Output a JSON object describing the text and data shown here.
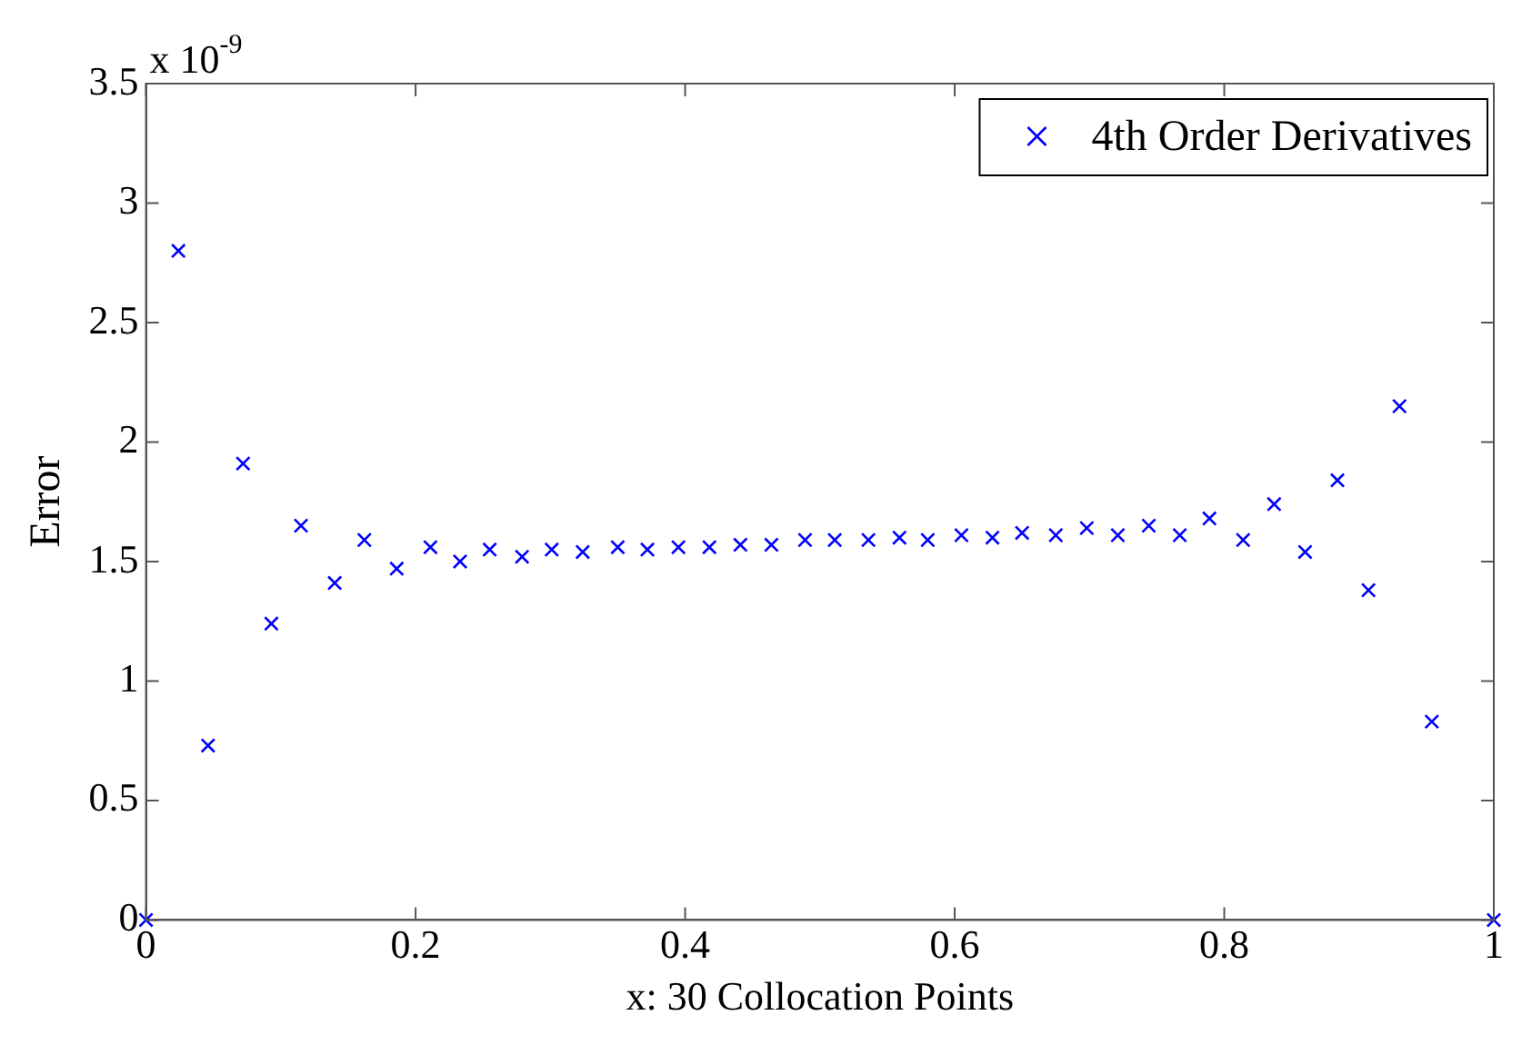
{
  "chart_data": {
    "type": "scatter",
    "xlabel": "x: 30 Collocation Points",
    "ylabel": "Error",
    "annotations": [
      "x 10$^{-9}$"
    ],
    "xlim": [
      0,
      1
    ],
    "xticks": [
      0,
      0.2,
      0.4,
      0.6,
      0.8,
      1
    ],
    "ylim": [
      0,
      3.5
    ],
    "yticks": [
      0,
      0.5,
      1,
      1.5,
      2,
      2.5,
      3,
      3.5
    ],
    "grid": false,
    "legend": "top right",
    "marker": "cross",
    "series": [
      {
        "name": "4th Order Derivatives",
        "color": "#0000ff",
        "x": [
          0,
          0.024,
          0.046,
          0.072,
          0.093,
          0.115,
          0.14,
          0.162,
          0.186,
          0.211,
          0.233,
          0.255,
          0.279,
          0.301,
          0.324,
          0.35,
          0.372,
          0.395,
          0.418,
          0.441,
          0.464,
          0.489,
          0.511,
          0.536,
          0.559,
          0.58,
          0.605,
          0.628,
          0.65,
          0.675,
          0.698,
          0.721,
          0.744,
          0.767,
          0.789,
          0.814,
          0.837,
          0.86,
          0.884,
          0.907,
          0.93,
          0.954,
          1
        ],
        "values": [
          0,
          2.8,
          0.73,
          1.91,
          1.24,
          1.65,
          1.41,
          1.59,
          1.47,
          1.56,
          1.5,
          1.55,
          1.52,
          1.55,
          1.54,
          1.56,
          1.55,
          1.56,
          1.56,
          1.57,
          1.57,
          1.59,
          1.59,
          1.59,
          1.6,
          1.59,
          1.61,
          1.6,
          1.62,
          1.61,
          1.64,
          1.61,
          1.65,
          1.61,
          1.68,
          1.59,
          1.74,
          1.54,
          1.84,
          1.38,
          2.15,
          0.83,
          0
        ]
      }
    ]
  }
}
